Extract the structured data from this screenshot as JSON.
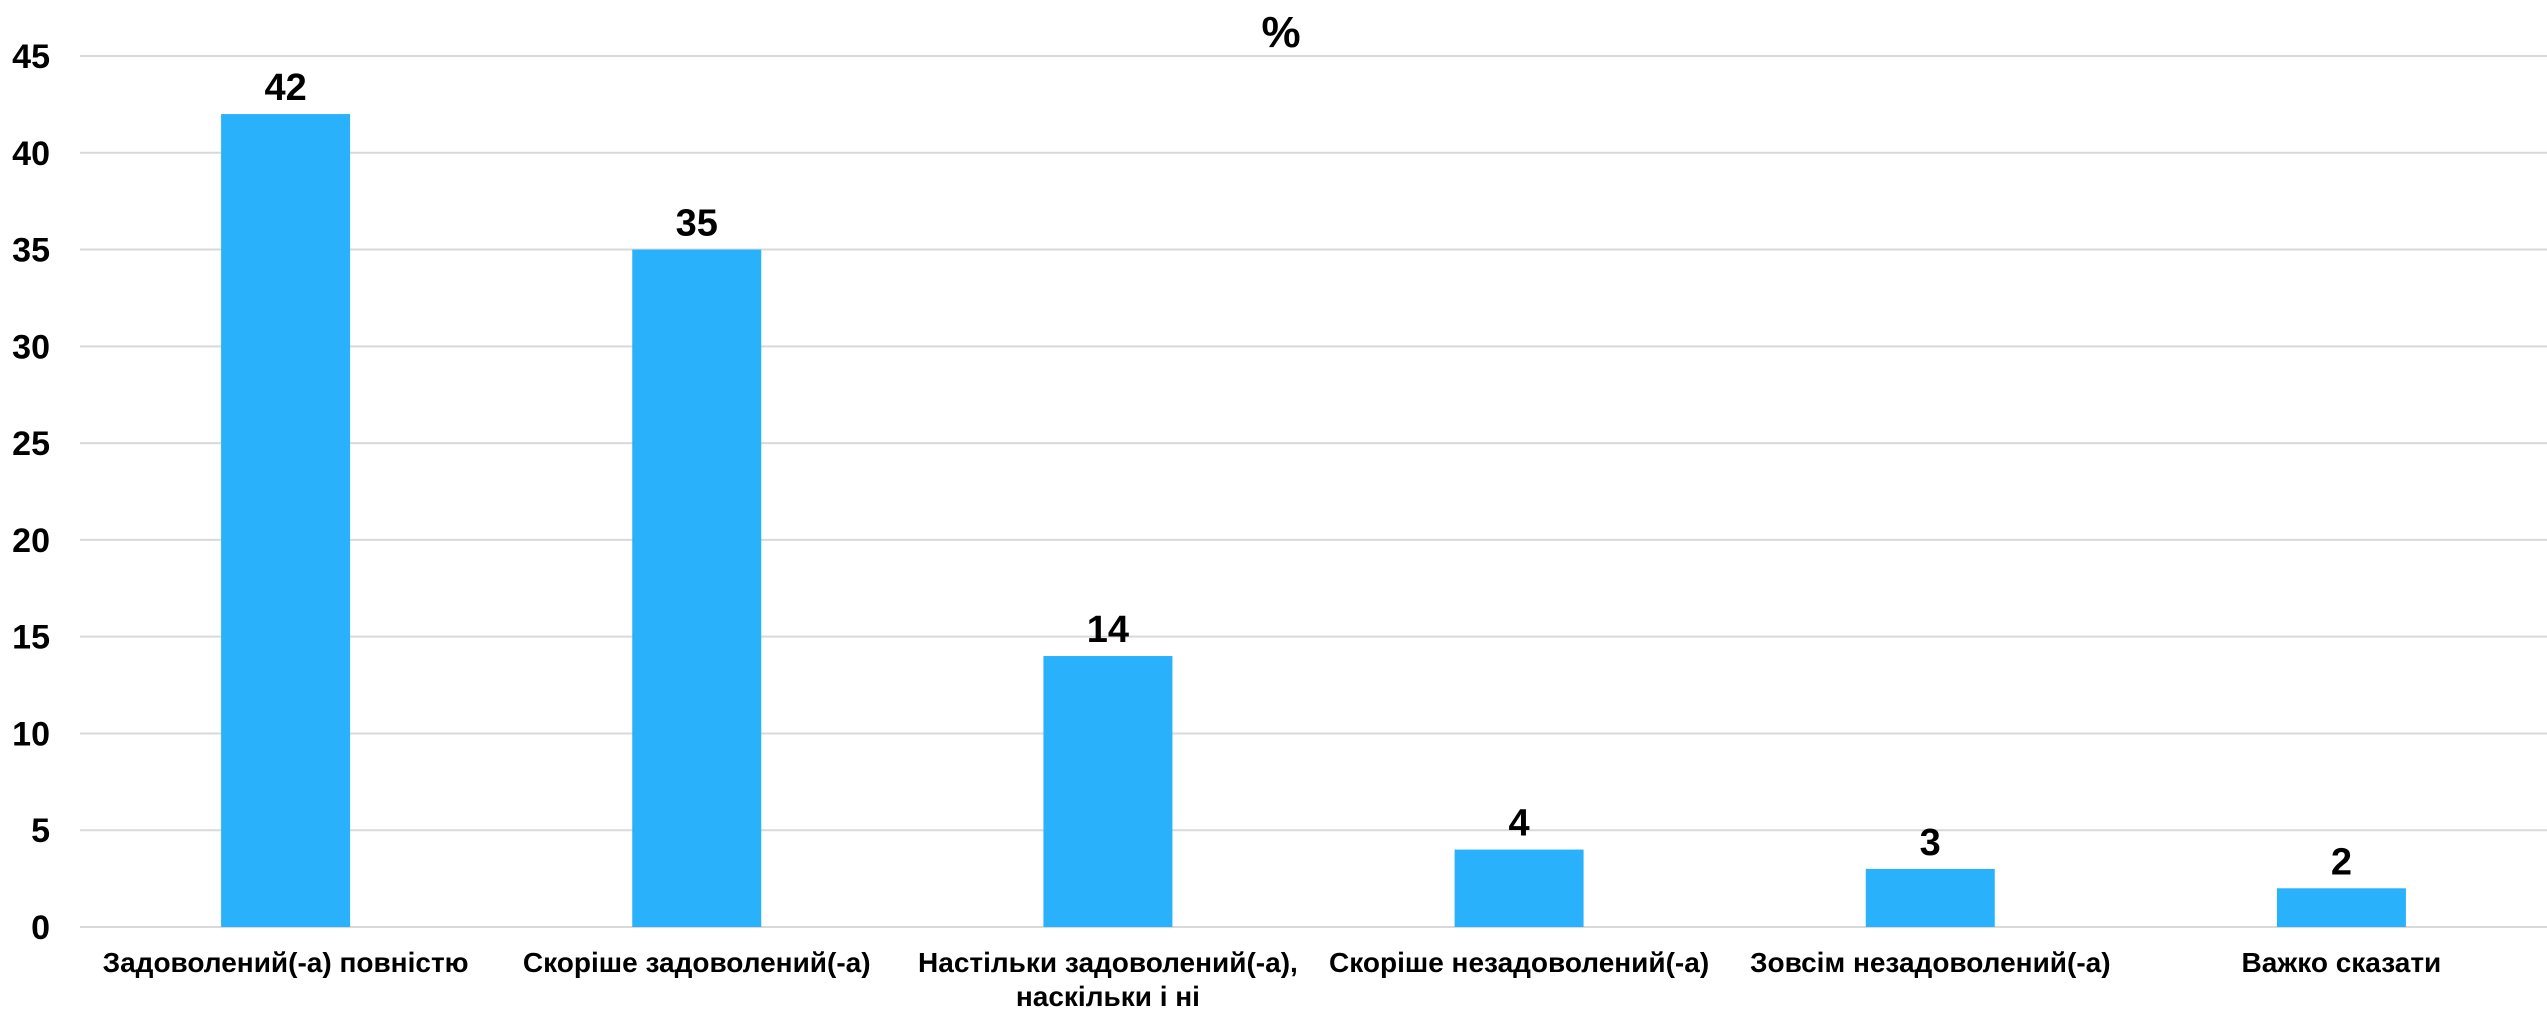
{
  "chart_data": {
    "type": "bar",
    "title": "%",
    "xlabel": "",
    "ylabel": "",
    "ylim": [
      0,
      45
    ],
    "yticks": [
      0,
      5,
      10,
      15,
      20,
      25,
      30,
      35,
      40,
      45
    ],
    "grid": true,
    "legend": "none",
    "bar_color": "#29b2fb",
    "categories": [
      [
        "Задоволений(-а) повністю"
      ],
      [
        "Скоріше задоволений(-а)"
      ],
      [
        "Настільки задоволений(-а),",
        "наскільки і ні"
      ],
      [
        "Скоріше незадоволений(-а)"
      ],
      [
        "Зовсім незадоволений(-а)"
      ],
      [
        "Важко сказати"
      ]
    ],
    "values": [
      42,
      35,
      14,
      4,
      3,
      2
    ]
  }
}
